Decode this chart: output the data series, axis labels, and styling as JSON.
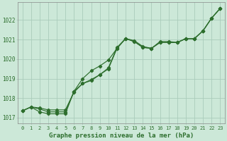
{
  "title": "Graphe pression niveau de la mer (hPa)",
  "bg_color": "#cce8d8",
  "grid_color": "#aaccbb",
  "line_color": "#2d6e2d",
  "marker_color": "#2d6e2d",
  "xlim": [
    -0.5,
    23.5
  ],
  "ylim": [
    1016.7,
    1022.9
  ],
  "yticks": [
    1017,
    1018,
    1019,
    1020,
    1021,
    1022
  ],
  "xticks": [
    0,
    1,
    2,
    3,
    4,
    5,
    6,
    7,
    8,
    9,
    10,
    11,
    12,
    13,
    14,
    15,
    16,
    17,
    18,
    19,
    20,
    21,
    22,
    23
  ],
  "line1": [
    1017.35,
    1017.55,
    1017.45,
    1017.3,
    1017.3,
    1017.3,
    1018.35,
    1019.0,
    1019.4,
    1019.65,
    1019.95,
    1020.55,
    1021.05,
    1020.95,
    1020.65,
    1020.55,
    1020.9,
    1020.9,
    1020.9,
    1021.05,
    1021.05,
    1021.45,
    1022.1,
    1022.6
  ],
  "line2": [
    1017.35,
    1017.55,
    1017.5,
    1017.4,
    1017.4,
    1017.4,
    1018.3,
    1018.75,
    1018.9,
    1019.15,
    1019.5,
    1020.55,
    1021.0,
    1020.85,
    1020.55,
    1020.5,
    1020.85,
    1020.85,
    1020.85,
    1021.0,
    1021.0,
    1021.4,
    1022.05,
    1022.55
  ],
  "line3": [
    1017.35,
    1017.55,
    1017.45,
    1017.3,
    1017.3,
    1017.3,
    1018.35,
    1018.75,
    1018.9,
    1019.15,
    1019.5,
    1020.55,
    1021.0,
    1020.85,
    1020.55,
    1020.5,
    1020.85,
    1020.85,
    1020.85,
    1021.0,
    1021.0,
    1021.4,
    1022.05,
    1022.55
  ]
}
